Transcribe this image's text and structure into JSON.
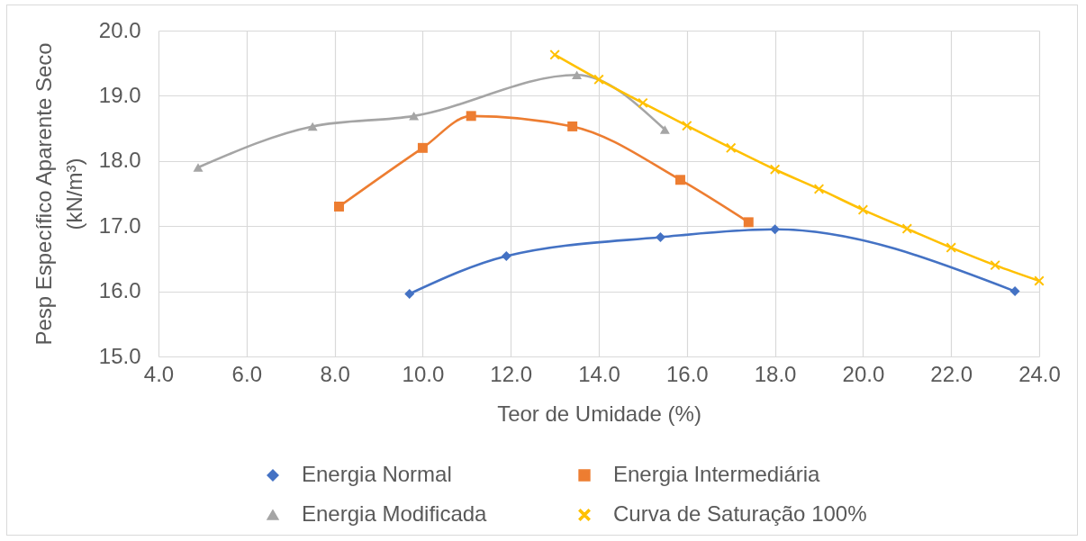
{
  "chart_data": {
    "type": "line",
    "xlabel": "Teor de Umidade (%)",
    "ylabel": "Pesp Específico Aparente Seco\n(kN/m³)",
    "xlim": [
      4,
      24
    ],
    "xticks": [
      {
        "value": 4,
        "label": "4.0"
      },
      {
        "value": 6,
        "label": "6.0"
      },
      {
        "value": 8,
        "label": "8.0"
      },
      {
        "value": 10,
        "label": "10.0"
      },
      {
        "value": 12,
        "label": "12.0"
      },
      {
        "value": 14,
        "label": "14.0"
      },
      {
        "value": 16,
        "label": "16.0"
      },
      {
        "value": 18,
        "label": "18.0"
      },
      {
        "value": 20,
        "label": "20.0"
      },
      {
        "value": 22,
        "label": "22.0"
      },
      {
        "value": 24,
        "label": "24.0"
      }
    ],
    "ylim": [
      15,
      20
    ],
    "yticks": [
      {
        "value": 15,
        "label": "15.0"
      },
      {
        "value": 16,
        "label": "16.0"
      },
      {
        "value": 17,
        "label": "17.0"
      },
      {
        "value": 18,
        "label": "18.0"
      },
      {
        "value": 19,
        "label": "19.0"
      },
      {
        "value": 20,
        "label": "20.0"
      }
    ],
    "grid": true,
    "legend": "bottom",
    "line_style": "solid",
    "series": [
      {
        "name": "Energia Normal",
        "color": "#4472c4",
        "marker": "diamond",
        "x": [
          9.7,
          11.9,
          15.4,
          18.0,
          23.45
        ],
        "values": [
          15.96,
          16.54,
          16.83,
          16.95,
          16.0
        ]
      },
      {
        "name": "Energia Intermediária",
        "color": "#ed7d31",
        "marker": "square",
        "x": [
          8.1,
          10.0,
          11.1,
          13.4,
          15.85,
          17.4
        ],
        "values": [
          17.3,
          18.2,
          18.69,
          18.53,
          17.71,
          17.06
        ]
      },
      {
        "name": "Energia Modificada",
        "color": "#a5a5a5",
        "marker": "triangle",
        "x": [
          4.9,
          7.5,
          9.8,
          13.5,
          15.5
        ],
        "values": [
          17.9,
          18.53,
          18.69,
          19.32,
          18.48
        ]
      },
      {
        "name": "Curva de Saturação 100%",
        "color": "#ffc000",
        "marker": "cross",
        "x": [
          13.0,
          14.0,
          15.0,
          16.0,
          17.0,
          18.0,
          19.0,
          20.0,
          21.0,
          22.0,
          23.0,
          24.0
        ],
        "values": [
          19.63,
          19.25,
          18.89,
          18.54,
          18.2,
          17.87,
          17.57,
          17.25,
          16.96,
          16.67,
          16.4,
          16.16
        ]
      }
    ]
  }
}
